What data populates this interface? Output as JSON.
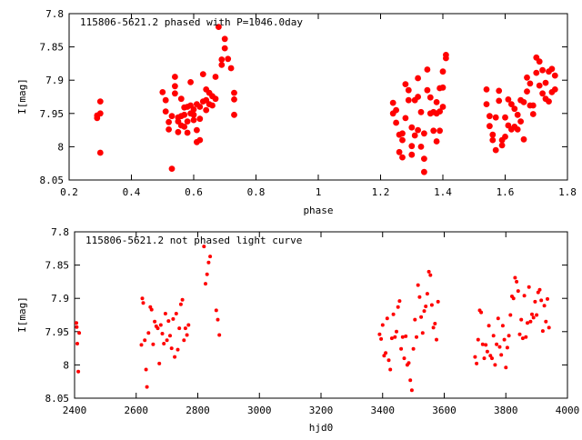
{
  "chart_data": [
    {
      "type": "scatter",
      "title": "115806-5621.2 phased with P=1046.0day",
      "xlabel": "phase",
      "ylabel": "I[mag]",
      "xlim": [
        0.2,
        1.8
      ],
      "ylim": [
        8.05,
        7.8
      ],
      "y_inverted": true,
      "xticks": [
        "0.2",
        "0.4",
        "0.6",
        "0.8",
        "1",
        "1.2",
        "1.4",
        "1.6",
        "1.8"
      ],
      "xtick_values": [
        0.2,
        0.4,
        0.6,
        0.8,
        1.0,
        1.2,
        1.4,
        1.6,
        1.8
      ],
      "yticks": [
        "7.8",
        "7.85",
        "7.9",
        "7.95",
        "8",
        "8.05"
      ],
      "ytick_values": [
        7.8,
        7.85,
        7.9,
        7.95,
        8.0,
        8.05
      ],
      "grid": false,
      "marker": "filled-circle-large",
      "color": "#ff0000",
      "series": [
        {
          "x": [
            0.29,
            0.29,
            0.3,
            0.3,
            0.3,
            0.5,
            0.51,
            0.51,
            0.52,
            0.52,
            0.53,
            0.53,
            0.54,
            0.54,
            0.54,
            0.55,
            0.55,
            0.55,
            0.56,
            0.56,
            0.56,
            0.57,
            0.57,
            0.57,
            0.58,
            0.58,
            0.58,
            0.59,
            0.59,
            0.59,
            0.6,
            0.6,
            0.6,
            0.61,
            0.61,
            0.61,
            0.62,
            0.62,
            0.62,
            0.63,
            0.63,
            0.64,
            0.64,
            0.64,
            0.65,
            0.65,
            0.66,
            0.66,
            0.67,
            0.67,
            0.68,
            0.69,
            0.69,
            0.7,
            0.7,
            0.71,
            0.72,
            0.73,
            0.73,
            0.73,
            1.24,
            1.24,
            1.25,
            1.25,
            1.26,
            1.26,
            1.27,
            1.27,
            1.27,
            1.28,
            1.28,
            1.29,
            1.29,
            1.3,
            1.3,
            1.3,
            1.31,
            1.31,
            1.32,
            1.32,
            1.32,
            1.33,
            1.33,
            1.34,
            1.34,
            1.34,
            1.35,
            1.35,
            1.36,
            1.36,
            1.37,
            1.37,
            1.38,
            1.38,
            1.38,
            1.39,
            1.39,
            1.39,
            1.4,
            1.4,
            1.4,
            1.41,
            1.41,
            1.54,
            1.54,
            1.55,
            1.55,
            1.56,
            1.56,
            1.57,
            1.57,
            1.58,
            1.58,
            1.59,
            1.59,
            1.6,
            1.6,
            1.61,
            1.61,
            1.62,
            1.62,
            1.63,
            1.63,
            1.64,
            1.64,
            1.65,
            1.65,
            1.66,
            1.66,
            1.67,
            1.67,
            1.68,
            1.68,
            1.69,
            1.69,
            1.7,
            1.7,
            1.71,
            1.71,
            1.72,
            1.72,
            1.73,
            1.73,
            1.74,
            1.74,
            1.75,
            1.75,
            1.76,
            1.76
          ],
          "y": [
            7.953,
            7.957,
            7.932,
            7.95,
            8.009,
            7.918,
            7.93,
            7.947,
            7.963,
            7.974,
            7.954,
            8.033,
            7.895,
            7.909,
            7.92,
            7.956,
            7.962,
            7.978,
            7.928,
            7.954,
            7.968,
            7.941,
            7.952,
            7.97,
            7.94,
            7.962,
            7.979,
            7.903,
            7.938,
            7.95,
            7.944,
            7.952,
            7.96,
            7.936,
            7.975,
            7.993,
            7.94,
            7.958,
            7.99,
            7.891,
            7.932,
            7.914,
            7.93,
            7.945,
            7.919,
            7.936,
            7.924,
            7.938,
            7.928,
            7.895,
            7.82,
            7.869,
            7.877,
            7.838,
            7.852,
            7.868,
            7.882,
            7.929,
            7.952,
            7.919,
            7.934,
            7.95,
            7.964,
            7.945,
            7.982,
            8.008,
            7.98,
            7.99,
            8.016,
            7.906,
            7.957,
            7.915,
            7.93,
            7.971,
            7.999,
            8.012,
            7.93,
            7.983,
            7.897,
            7.925,
            7.975,
            7.948,
            8.0,
            8.018,
            8.038,
            7.98,
            7.884,
            7.915,
            7.926,
            7.95,
            7.948,
            7.976,
            7.95,
            7.933,
            7.992,
            7.912,
            7.947,
            7.976,
            7.887,
            7.911,
            7.94,
            7.862,
            7.867,
            7.914,
            7.936,
            7.954,
            7.969,
            7.99,
            7.982,
            7.956,
            8.005,
            7.916,
            7.931,
            7.998,
            7.99,
            7.956,
            7.985,
            7.968,
            7.929,
            7.974,
            7.936,
            7.943,
            7.97,
            7.974,
            7.952,
            7.93,
            7.962,
            7.933,
            7.989,
            7.917,
            7.896,
            7.905,
            7.938,
            7.951,
            7.938,
            7.866,
            7.889,
            7.872,
            7.908,
            7.885,
            7.92,
            7.928,
            7.904,
            7.887,
            7.932,
            7.883,
            7.918,
            7.893,
            7.914
          ]
        }
      ]
    },
    {
      "type": "scatter",
      "title": "115806-5621.2 not phased light curve",
      "xlabel": "hjd0",
      "ylabel": "I[mag]",
      "xlim": [
        2400,
        4000
      ],
      "ylim": [
        8.05,
        7.8
      ],
      "y_inverted": true,
      "xticks": [
        "2400",
        "2600",
        "2800",
        "3000",
        "3200",
        "3400",
        "3600",
        "3800",
        "4000"
      ],
      "xtick_values": [
        2400,
        2600,
        2800,
        3000,
        3200,
        3400,
        3600,
        3800,
        4000
      ],
      "yticks": [
        "7.8",
        "7.85",
        "7.9",
        "7.95",
        "8",
        "8.05"
      ],
      "ytick_values": [
        7.8,
        7.85,
        7.9,
        7.95,
        8.0,
        8.05
      ],
      "grid": false,
      "marker": "filled-circle-small",
      "color": "#ff0000",
      "series": [
        {
          "x": [
            2406,
            2407,
            2409,
            2412,
            2415,
            2617,
            2620,
            2623,
            2628,
            2632,
            2635,
            2640,
            2646,
            2650,
            2655,
            2660,
            2665,
            2670,
            2675,
            2680,
            2685,
            2690,
            2695,
            2700,
            2705,
            2710,
            2715,
            2720,
            2725,
            2730,
            2735,
            2740,
            2745,
            2750,
            2755,
            2760,
            2765,
            2770,
            2820,
            2825,
            2830,
            2835,
            2840,
            2860,
            2865,
            2870,
            3390,
            3395,
            3400,
            3405,
            3410,
            3415,
            3420,
            3425,
            3430,
            3435,
            3440,
            3445,
            3450,
            3455,
            3460,
            3465,
            3470,
            3475,
            3480,
            3485,
            3490,
            3495,
            3500,
            3505,
            3510,
            3515,
            3520,
            3525,
            3530,
            3535,
            3540,
            3545,
            3550,
            3555,
            3560,
            3565,
            3570,
            3575,
            3580,
            3700,
            3705,
            3710,
            3715,
            3720,
            3725,
            3730,
            3735,
            3740,
            3745,
            3750,
            3755,
            3760,
            3765,
            3770,
            3775,
            3780,
            3785,
            3790,
            3795,
            3800,
            3805,
            3810,
            3815,
            3820,
            3825,
            3830,
            3835,
            3840,
            3845,
            3850,
            3855,
            3860,
            3865,
            3870,
            3875,
            3880,
            3885,
            3890,
            3895,
            3900,
            3905,
            3910,
            3915,
            3920,
            3925,
            3930,
            3935,
            3940
          ],
          "y": [
            7.937,
            7.943,
            7.968,
            8.01,
            7.952,
            7.97,
            7.9,
            7.907,
            7.963,
            8.007,
            8.033,
            7.952,
            7.913,
            7.917,
            7.969,
            7.935,
            7.942,
            7.945,
            7.998,
            7.94,
            7.953,
            7.968,
            7.923,
            7.963,
            7.934,
            7.956,
            7.975,
            7.931,
            7.988,
            7.923,
            7.977,
            7.945,
            7.909,
            7.902,
            7.963,
            7.945,
            7.955,
            7.94,
            7.822,
            7.878,
            7.864,
            7.846,
            7.837,
            7.918,
            7.932,
            7.955,
            7.954,
            7.961,
            7.94,
            7.986,
            7.982,
            7.93,
            7.993,
            8.007,
            7.96,
            7.924,
            7.958,
            7.95,
            7.913,
            7.904,
            7.976,
            7.958,
            7.99,
            7.957,
            8.0,
            7.997,
            8.023,
            8.038,
            7.976,
            7.932,
            7.958,
            7.88,
            7.898,
            7.928,
            7.952,
            7.919,
            7.912,
            7.893,
            7.86,
            7.865,
            7.91,
            7.944,
            7.938,
            7.962,
            7.905,
            7.988,
            7.998,
            7.962,
            7.918,
            7.921,
            7.969,
            7.99,
            7.97,
            7.98,
            7.941,
            7.986,
            7.99,
            7.956,
            8.0,
            7.969,
            7.93,
            7.973,
            7.985,
            7.941,
            7.962,
            8.004,
            7.974,
            7.956,
            7.925,
            7.897,
            7.9,
            7.869,
            7.875,
            7.889,
            7.954,
            7.932,
            7.96,
            7.896,
            7.958,
            7.937,
            7.883,
            7.935,
            7.924,
            7.929,
            7.905,
            7.925,
            7.891,
            7.887,
            7.903,
            7.949,
            7.911,
            7.935,
            7.901,
            7.944
          ]
        }
      ]
    }
  ]
}
